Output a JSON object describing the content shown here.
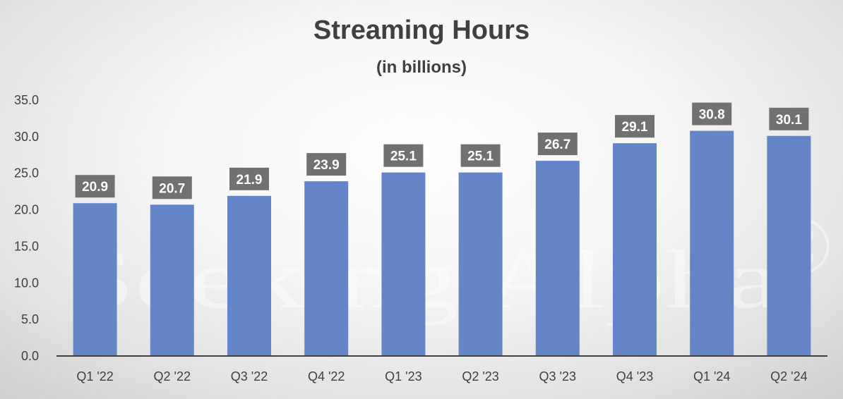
{
  "chart_data": {
    "type": "bar",
    "title": "Streaming Hours",
    "subtitle": "(in billions)",
    "xlabel": "",
    "ylabel": "",
    "categories": [
      "Q1 '22",
      "Q2 '22",
      "Q3 '22",
      "Q4 '22",
      "Q1 '23",
      "Q2 '23",
      "Q3 '23",
      "Q4 '23",
      "Q1 '24",
      "Q2 '24"
    ],
    "values": [
      20.9,
      20.7,
      21.9,
      23.9,
      25.1,
      25.1,
      26.7,
      29.1,
      30.8,
      30.1
    ],
    "data_labels": [
      "20.9",
      "20.7",
      "21.9",
      "23.9",
      "25.1",
      "25.1",
      "26.7",
      "29.1",
      "30.8",
      "30.1"
    ],
    "ylim": [
      0,
      35
    ],
    "y_ticks": [
      "0.0",
      "5.0",
      "10.0",
      "15.0",
      "20.0",
      "25.0",
      "30.0",
      "35.0"
    ],
    "y_tick_values": [
      0,
      5,
      10,
      15,
      20,
      25,
      30,
      35
    ],
    "grid": false,
    "legend": "none",
    "bar_color": "#6585c9",
    "label_box_color": "#717171",
    "watermark": "Seeking Alpha"
  }
}
